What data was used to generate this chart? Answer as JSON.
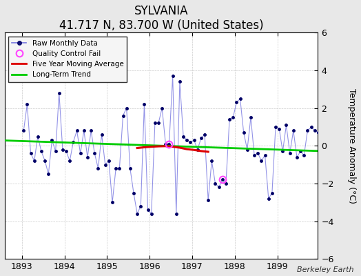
{
  "title": "SYLVANIA",
  "subtitle": "41.717 N, 83.700 W (United States)",
  "ylabel": "Temperature Anomaly (°C)",
  "attribution": "Berkeley Earth",
  "xlim": [
    1892.6,
    1899.95
  ],
  "ylim": [
    -6,
    6
  ],
  "yticks": [
    -6,
    -4,
    -2,
    0,
    2,
    4,
    6
  ],
  "xticks": [
    1893,
    1894,
    1895,
    1896,
    1897,
    1898,
    1899
  ],
  "fig_bg_color": "#e8e8e8",
  "plot_bg_color": "#ffffff",
  "monthly_data": {
    "times": [
      1893.042,
      1893.125,
      1893.208,
      1893.292,
      1893.375,
      1893.458,
      1893.542,
      1893.625,
      1893.708,
      1893.792,
      1893.875,
      1893.958,
      1894.042,
      1894.125,
      1894.208,
      1894.292,
      1894.375,
      1894.458,
      1894.542,
      1894.625,
      1894.708,
      1894.792,
      1894.875,
      1894.958,
      1895.042,
      1895.125,
      1895.208,
      1895.292,
      1895.375,
      1895.458,
      1895.542,
      1895.625,
      1895.708,
      1895.792,
      1895.875,
      1895.958,
      1896.042,
      1896.125,
      1896.208,
      1896.292,
      1896.375,
      1896.458,
      1896.542,
      1896.625,
      1896.708,
      1896.792,
      1896.875,
      1896.958,
      1897.042,
      1897.125,
      1897.208,
      1897.292,
      1897.375,
      1897.458,
      1897.542,
      1897.625,
      1897.708,
      1897.792,
      1897.875,
      1897.958,
      1898.042,
      1898.125,
      1898.208,
      1898.292,
      1898.375,
      1898.458,
      1898.542,
      1898.625,
      1898.708,
      1898.792,
      1898.875,
      1898.958,
      1899.042,
      1899.125,
      1899.208,
      1899.292,
      1899.375,
      1899.458,
      1899.542,
      1899.625,
      1899.708,
      1899.792,
      1899.875,
      1899.958
    ],
    "values": [
      0.8,
      2.2,
      -0.4,
      -0.8,
      0.5,
      -0.3,
      -0.8,
      -1.5,
      0.3,
      -0.3,
      2.8,
      -0.2,
      -0.3,
      -0.8,
      0.2,
      0.8,
      -0.4,
      0.8,
      -0.6,
      0.8,
      -0.4,
      -1.2,
      0.6,
      -1.0,
      -0.8,
      -3.0,
      -1.2,
      -1.2,
      1.6,
      2.0,
      -1.2,
      -2.5,
      -3.6,
      -3.2,
      2.2,
      -3.4,
      -3.6,
      1.2,
      1.2,
      2.0,
      0.1,
      0.1,
      3.7,
      -3.6,
      3.4,
      0.5,
      0.3,
      0.2,
      0.3,
      -0.2,
      0.4,
      0.6,
      -2.9,
      -0.8,
      -2.0,
      -2.2,
      -1.8,
      -2.0,
      1.4,
      1.5,
      2.3,
      2.5,
      0.7,
      -0.2,
      1.5,
      -0.5,
      -0.4,
      -0.8,
      -0.5,
      -2.8,
      -2.5,
      1.0,
      0.9,
      -0.3,
      1.1,
      -0.4,
      0.8,
      -0.6,
      -0.3,
      -0.5,
      0.8,
      1.0,
      0.8,
      0.7
    ]
  },
  "qc_fail_times": [
    1896.458,
    1897.708
  ],
  "qc_fail_values": [
    0.1,
    -1.8
  ],
  "moving_avg": {
    "times": [
      1895.708,
      1895.875,
      1896.042,
      1896.208,
      1896.375,
      1896.542,
      1896.708,
      1896.875,
      1897.042,
      1897.208,
      1897.375
    ],
    "values": [
      -0.12,
      -0.08,
      -0.05,
      -0.03,
      -0.02,
      -0.05,
      -0.1,
      -0.18,
      -0.22,
      -0.28,
      -0.32
    ]
  },
  "trend": {
    "times": [
      1892.6,
      1900.0
    ],
    "values": [
      0.28,
      -0.28
    ]
  },
  "line_color": "#6666dd",
  "line_alpha": 0.7,
  "marker_color": "#000066",
  "qc_color": "#ff44ff",
  "moving_avg_color": "#dd0000",
  "trend_color": "#00cc00",
  "grid_color": "#aaaaaa",
  "tick_label_fontsize": 9,
  "title_fontsize": 12,
  "subtitle_fontsize": 10
}
